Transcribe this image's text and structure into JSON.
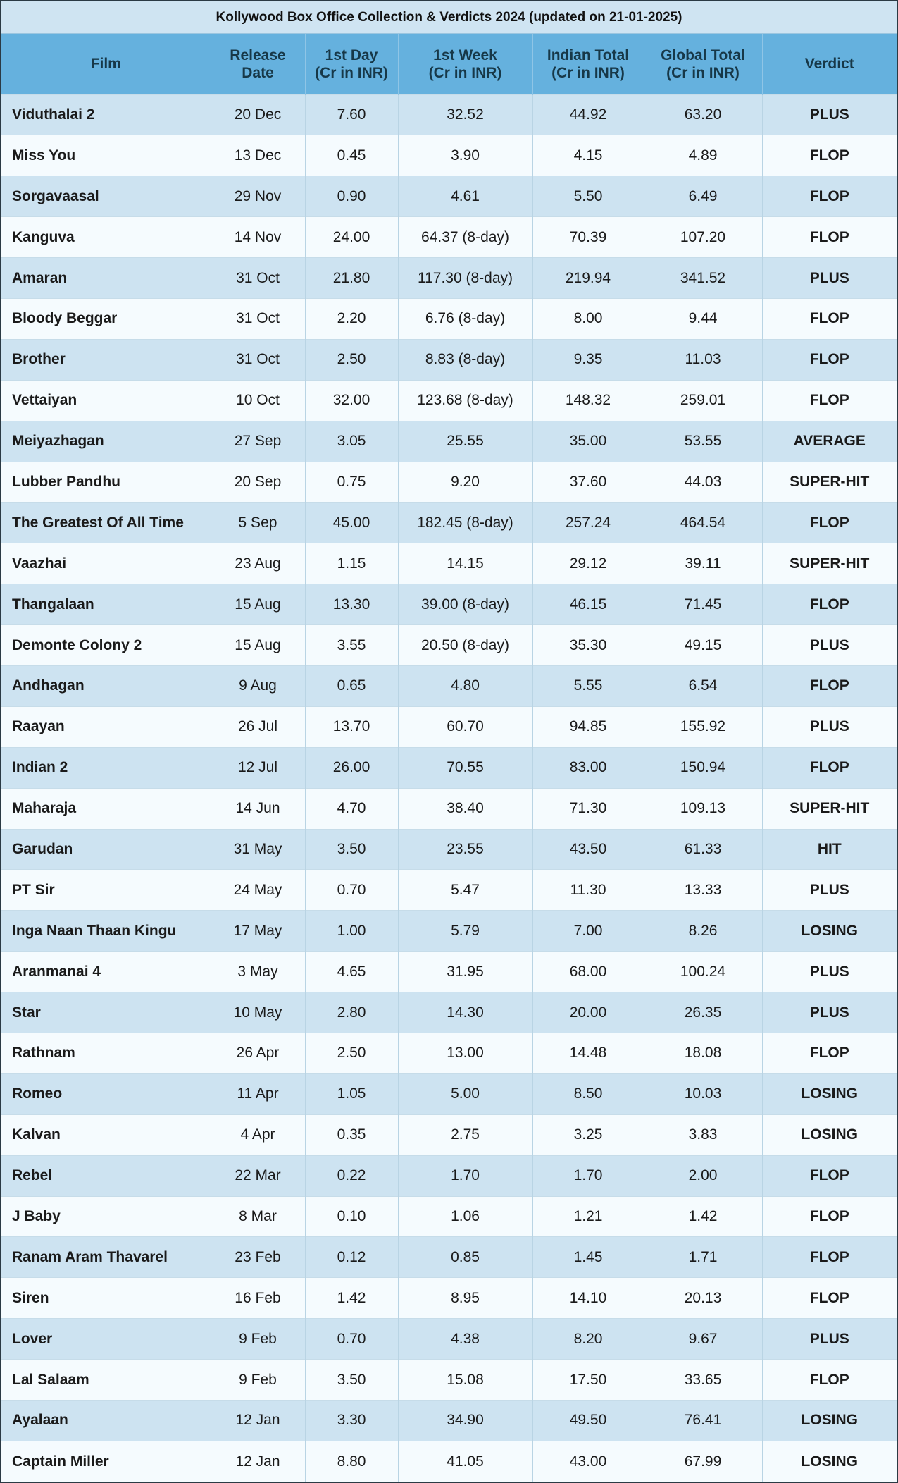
{
  "title": "Kollywood Box Office Collection & Verdicts 2024 (updated on 21-01-2025)",
  "headers": [
    [
      "Film",
      ""
    ],
    [
      "Release",
      "Date"
    ],
    [
      "1st Day",
      "(Cr in INR)"
    ],
    [
      "1st Week",
      "(Cr in INR)"
    ],
    [
      "Indian Total",
      "(Cr in INR)"
    ],
    [
      "Global Total",
      "(Cr in INR)"
    ],
    [
      "Verdict",
      ""
    ]
  ],
  "rows": [
    [
      "Viduthalai 2",
      "20 Dec",
      "7.60",
      "32.52",
      "44.92",
      "63.20",
      "PLUS"
    ],
    [
      "Miss You",
      "13 Dec",
      "0.45",
      "3.90",
      "4.15",
      "4.89",
      "FLOP"
    ],
    [
      "Sorgavaasal",
      "29 Nov",
      "0.90",
      "4.61",
      "5.50",
      "6.49",
      "FLOP"
    ],
    [
      "Kanguva",
      "14 Nov",
      "24.00",
      "64.37 (8-day)",
      "70.39",
      "107.20",
      "FLOP"
    ],
    [
      "Amaran",
      "31 Oct",
      "21.80",
      "117.30 (8-day)",
      "219.94",
      "341.52",
      "PLUS"
    ],
    [
      "Bloody Beggar",
      "31 Oct",
      "2.20",
      "6.76 (8-day)",
      "8.00",
      "9.44",
      "FLOP"
    ],
    [
      "Brother",
      "31 Oct",
      "2.50",
      "8.83 (8-day)",
      "9.35",
      "11.03",
      "FLOP"
    ],
    [
      "Vettaiyan",
      "10 Oct",
      "32.00",
      "123.68 (8-day)",
      "148.32",
      "259.01",
      "FLOP"
    ],
    [
      "Meiyazhagan",
      "27 Sep",
      "3.05",
      "25.55",
      "35.00",
      "53.55",
      "AVERAGE"
    ],
    [
      "Lubber Pandhu",
      "20 Sep",
      "0.75",
      "9.20",
      "37.60",
      "44.03",
      "SUPER-HIT"
    ],
    [
      "The Greatest Of All Time",
      "5 Sep",
      "45.00",
      "182.45 (8-day)",
      "257.24",
      "464.54",
      "FLOP"
    ],
    [
      "Vaazhai",
      "23 Aug",
      "1.15",
      "14.15",
      "29.12",
      "39.11",
      "SUPER-HIT"
    ],
    [
      "Thangalaan",
      "15 Aug",
      "13.30",
      "39.00 (8-day)",
      "46.15",
      "71.45",
      "FLOP"
    ],
    [
      "Demonte Colony 2",
      "15 Aug",
      "3.55",
      "20.50 (8-day)",
      "35.30",
      "49.15",
      "PLUS"
    ],
    [
      "Andhagan",
      "9 Aug",
      "0.65",
      "4.80",
      "5.55",
      "6.54",
      "FLOP"
    ],
    [
      "Raayan",
      "26 Jul",
      "13.70",
      "60.70",
      "94.85",
      "155.92",
      "PLUS"
    ],
    [
      "Indian 2",
      "12 Jul",
      "26.00",
      "70.55",
      "83.00",
      "150.94",
      "FLOP"
    ],
    [
      "Maharaja",
      "14 Jun",
      "4.70",
      "38.40",
      "71.30",
      "109.13",
      "SUPER-HIT"
    ],
    [
      "Garudan",
      "31 May",
      "3.50",
      "23.55",
      "43.50",
      "61.33",
      "HIT"
    ],
    [
      "PT Sir",
      "24 May",
      "0.70",
      "5.47",
      "11.30",
      "13.33",
      "PLUS"
    ],
    [
      "Inga Naan Thaan Kingu",
      "17 May",
      "1.00",
      "5.79",
      "7.00",
      "8.26",
      "LOSING"
    ],
    [
      "Aranmanai 4",
      "3 May",
      "4.65",
      "31.95",
      "68.00",
      "100.24",
      "PLUS"
    ],
    [
      "Star",
      "10 May",
      "2.80",
      "14.30",
      "20.00",
      "26.35",
      "PLUS"
    ],
    [
      "Rathnam",
      "26 Apr",
      "2.50",
      "13.00",
      "14.48",
      "18.08",
      "FLOP"
    ],
    [
      "Romeo",
      "11 Apr",
      "1.05",
      "5.00",
      "8.50",
      "10.03",
      "LOSING"
    ],
    [
      "Kalvan",
      "4 Apr",
      "0.35",
      "2.75",
      "3.25",
      "3.83",
      "LOSING"
    ],
    [
      "Rebel",
      "22 Mar",
      "0.22",
      "1.70",
      "1.70",
      "2.00",
      "FLOP"
    ],
    [
      "J Baby",
      "8 Mar",
      "0.10",
      "1.06",
      "1.21",
      "1.42",
      "FLOP"
    ],
    [
      "Ranam Aram Thavarel",
      "23 Feb",
      "0.12",
      "0.85",
      "1.45",
      "1.71",
      "FLOP"
    ],
    [
      "Siren",
      "16 Feb",
      "1.42",
      "8.95",
      "14.10",
      "20.13",
      "FLOP"
    ],
    [
      "Lover",
      "9 Feb",
      "0.70",
      "4.38",
      "8.20",
      "9.67",
      "PLUS"
    ],
    [
      "Lal Salaam",
      "9 Feb",
      "3.50",
      "15.08",
      "17.50",
      "33.65",
      "FLOP"
    ],
    [
      "Ayalaan",
      "12 Jan",
      "3.30",
      "34.90",
      "49.50",
      "76.41",
      "LOSING"
    ],
    [
      "Captain Miller",
      "12 Jan",
      "8.80",
      "41.05",
      "43.00",
      "67.99",
      "LOSING"
    ]
  ]
}
